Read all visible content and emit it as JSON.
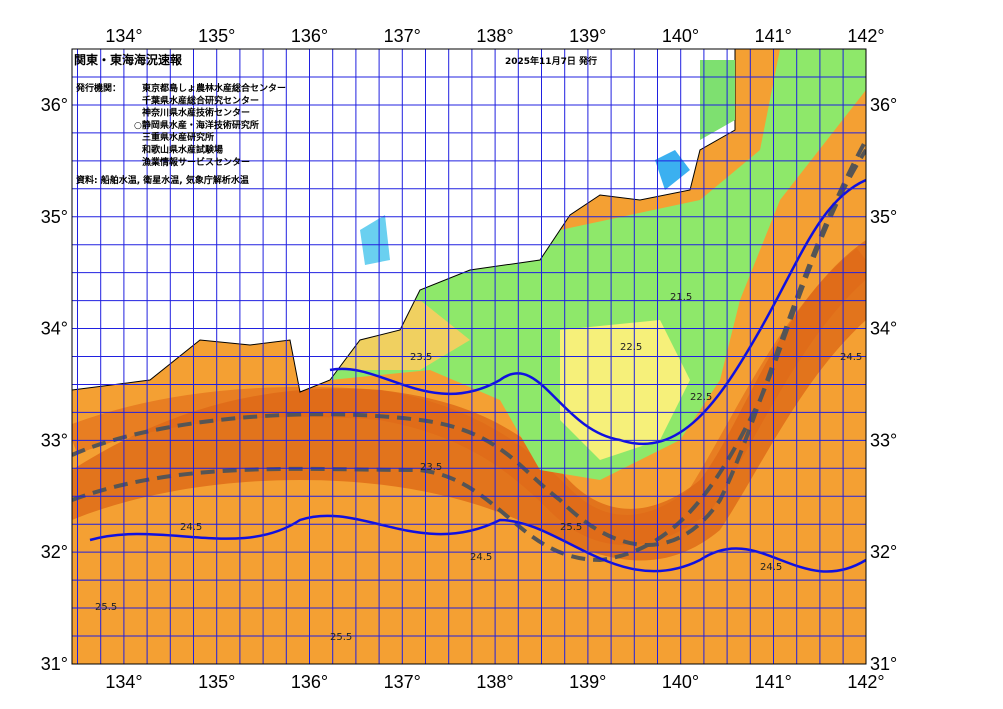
{
  "header": {
    "title": "関東・東海海況速報",
    "date": "2025年11月7日 発行",
    "agency_label": "発行機関：",
    "agencies": [
      "東京都島しょ農林水産総合センター",
      "千葉県水産総合研究センター",
      "神奈川県水産技術センター",
      "○静岡県水産・海洋技術研究所",
      "三重県水産研究所",
      "和歌山県水産試験場",
      "漁業情報サービスセンター"
    ],
    "source": "資料: 船舶水温, 衛星水温, 気象庁解析水温"
  },
  "axes": {
    "lon_labels": [
      "134°",
      "135°",
      "136°",
      "137°",
      "138°",
      "139°",
      "140°",
      "141°",
      "142°"
    ],
    "lat_labels": [
      "36°",
      "35°",
      "34°",
      "33°",
      "32°",
      "31°"
    ]
  },
  "contour_labels": [
    "25.5",
    "24.5",
    "23.5",
    "22.5",
    "21.5",
    "24.5",
    "25.5",
    "23.5",
    "24.5",
    "25.5",
    "22.5",
    "24.5"
  ]
}
